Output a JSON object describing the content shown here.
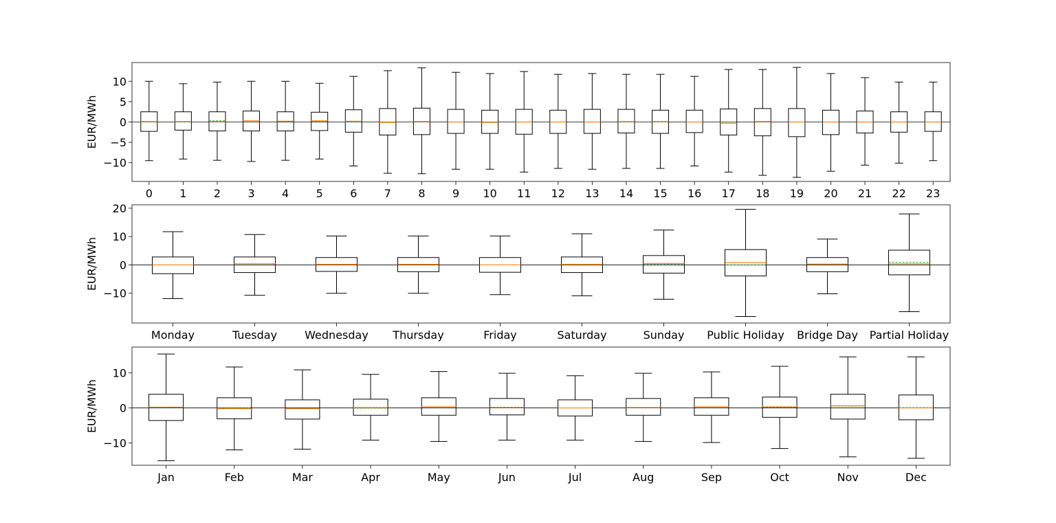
{
  "chart_data": [
    {
      "type": "box",
      "ylabel": "EUR/MWh",
      "yticks": [
        -10,
        -5,
        0,
        5,
        10
      ],
      "ylim": [
        -14.6,
        14.6
      ],
      "zero_line": true,
      "categories": [
        "0",
        "1",
        "2",
        "3",
        "4",
        "5",
        "6",
        "7",
        "8",
        "9",
        "10",
        "11",
        "12",
        "13",
        "14",
        "15",
        "16",
        "17",
        "18",
        "19",
        "20",
        "21",
        "22",
        "23"
      ],
      "boxes": [
        {
          "whislo": -9.5,
          "q1": -2.3,
          "med": 0.1,
          "mean": 0.0,
          "q3": 2.5,
          "whishi": 10.0
        },
        {
          "whislo": -9.1,
          "q1": -2.0,
          "med": 0.1,
          "mean": 0.0,
          "q3": 2.5,
          "whishi": 9.4
        },
        {
          "whislo": -9.4,
          "q1": -2.2,
          "med": 0.1,
          "mean": 0.3,
          "q3": 2.5,
          "whishi": 9.8
        },
        {
          "whislo": -9.7,
          "q1": -2.2,
          "med": 0.3,
          "mean": 0.3,
          "q3": 2.7,
          "whishi": 10.0
        },
        {
          "whislo": -9.4,
          "q1": -2.2,
          "med": 0.2,
          "mean": 0.2,
          "q3": 2.5,
          "whishi": 10.0
        },
        {
          "whislo": -9.1,
          "q1": -2.1,
          "med": 0.3,
          "mean": 0.2,
          "q3": 2.4,
          "whishi": 9.5
        },
        {
          "whislo": -10.8,
          "q1": -2.5,
          "med": 0.2,
          "mean": 0.0,
          "q3": 3.0,
          "whishi": 11.2
        },
        {
          "whislo": -12.6,
          "q1": -3.2,
          "med": -0.1,
          "mean": 0.0,
          "q3": 3.3,
          "whishi": 12.6
        },
        {
          "whislo": -12.7,
          "q1": -3.1,
          "med": 0.1,
          "mean": 0.1,
          "q3": 3.4,
          "whishi": 13.3
        },
        {
          "whislo": -11.6,
          "q1": -2.8,
          "med": 0.0,
          "mean": 0.0,
          "q3": 3.1,
          "whishi": 12.2
        },
        {
          "whislo": -11.6,
          "q1": -2.8,
          "med": -0.1,
          "mean": 0.0,
          "q3": 2.9,
          "whishi": 11.9
        },
        {
          "whislo": -12.3,
          "q1": -3.0,
          "med": 0.0,
          "mean": 0.0,
          "q3": 3.1,
          "whishi": 12.4
        },
        {
          "whislo": -11.4,
          "q1": -2.8,
          "med": 0.0,
          "mean": 0.0,
          "q3": 2.9,
          "whishi": 11.7
        },
        {
          "whislo": -11.6,
          "q1": -2.8,
          "med": 0.0,
          "mean": 0.0,
          "q3": 3.1,
          "whishi": 11.9
        },
        {
          "whislo": -11.4,
          "q1": -2.7,
          "med": 0.1,
          "mean": 0.0,
          "q3": 3.1,
          "whishi": 11.7
        },
        {
          "whislo": -11.4,
          "q1": -2.8,
          "med": 0.1,
          "mean": 0.0,
          "q3": 2.9,
          "whishi": 11.7
        },
        {
          "whislo": -10.8,
          "q1": -2.6,
          "med": 0.0,
          "mean": 0.0,
          "q3": 2.9,
          "whishi": 11.2
        },
        {
          "whislo": -12.3,
          "q1": -3.2,
          "med": -0.3,
          "mean": 0.0,
          "q3": 3.2,
          "whishi": 12.9
        },
        {
          "whislo": -13.1,
          "q1": -3.4,
          "med": 0.1,
          "mean": 0.1,
          "q3": 3.3,
          "whishi": 12.9
        },
        {
          "whislo": -13.6,
          "q1": -3.6,
          "med": 0.0,
          "mean": 0.0,
          "q3": 3.3,
          "whishi": 13.4
        },
        {
          "whislo": -12.1,
          "q1": -3.1,
          "med": 0.0,
          "mean": 0.0,
          "q3": 2.9,
          "whishi": 11.9
        },
        {
          "whislo": -10.6,
          "q1": -2.7,
          "med": 0.0,
          "mean": 0.0,
          "q3": 2.7,
          "whishi": 10.9
        },
        {
          "whislo": -10.1,
          "q1": -2.5,
          "med": 0.0,
          "mean": 0.0,
          "q3": 2.5,
          "whishi": 9.8
        },
        {
          "whislo": -9.5,
          "q1": -2.3,
          "med": 0.0,
          "mean": 0.0,
          "q3": 2.5,
          "whishi": 9.8
        }
      ]
    },
    {
      "type": "box",
      "ylabel": "EUR/MWh",
      "yticks": [
        -10,
        0,
        10,
        20
      ],
      "ylim": [
        -20.5,
        21.2
      ],
      "zero_line": true,
      "categories": [
        "Monday",
        "Tuesday",
        "Wednesday",
        "Thursday",
        "Friday",
        "Saturday",
        "Sunday",
        "Public Holiday",
        "Bridge Day",
        "Partial Holiday"
      ],
      "boxes": [
        {
          "whislo": -11.9,
          "q1": -3.1,
          "med": 0.0,
          "mean": 0.0,
          "q3": 2.8,
          "whishi": 11.7
        },
        {
          "whislo": -10.7,
          "q1": -2.7,
          "med": 0.4,
          "mean": 0.4,
          "q3": 2.8,
          "whishi": 10.7
        },
        {
          "whislo": -10.0,
          "q1": -2.3,
          "med": 0.2,
          "mean": 0.2,
          "q3": 2.6,
          "whishi": 10.2
        },
        {
          "whislo": -10.0,
          "q1": -2.4,
          "med": 0.2,
          "mean": 0.2,
          "q3": 2.6,
          "whishi": 10.2
        },
        {
          "whislo": -10.5,
          "q1": -2.6,
          "med": 0.0,
          "mean": 0.0,
          "q3": 2.6,
          "whishi": 10.2
        },
        {
          "whislo": -10.9,
          "q1": -2.7,
          "med": 0.2,
          "mean": -0.1,
          "q3": 2.8,
          "whishi": 11.0
        },
        {
          "whislo": -12.1,
          "q1": -2.9,
          "med": 0.5,
          "mean": 0.3,
          "q3": 3.3,
          "whishi": 12.3
        },
        {
          "whislo": -18.2,
          "q1": -3.9,
          "med": 0.8,
          "mean": 0.0,
          "q3": 5.4,
          "whishi": 19.6
        },
        {
          "whislo": -10.2,
          "q1": -2.4,
          "med": 0.3,
          "mean": 0.2,
          "q3": 2.6,
          "whishi": 9.1
        },
        {
          "whislo": -16.5,
          "q1": -3.5,
          "med": 0.4,
          "mean": 0.9,
          "q3": 5.2,
          "whishi": 18.0
        }
      ]
    },
    {
      "type": "box",
      "ylabel": "EUR/MWh",
      "yticks": [
        -10,
        0,
        10
      ],
      "ylim": [
        -16.4,
        17.4
      ],
      "zero_line": true,
      "categories": [
        "Jan",
        "Feb",
        "Mar",
        "Apr",
        "May",
        "Jun",
        "Jul",
        "Aug",
        "Sep",
        "Oct",
        "Nov",
        "Dec"
      ],
      "boxes": [
        {
          "whislo": -15.1,
          "q1": -3.6,
          "med": 0.2,
          "mean": 0.1,
          "q3": 3.9,
          "whishi": 15.4
        },
        {
          "whislo": -12.0,
          "q1": -3.1,
          "med": -0.2,
          "mean": -0.1,
          "q3": 2.9,
          "whishi": 11.7
        },
        {
          "whislo": -11.8,
          "q1": -3.2,
          "med": -0.2,
          "mean": -0.2,
          "q3": 2.3,
          "whishi": 10.9
        },
        {
          "whislo": -9.2,
          "q1": -2.1,
          "med": 0.1,
          "mean": -0.1,
          "q3": 2.5,
          "whishi": 9.6
        },
        {
          "whislo": -9.6,
          "q1": -2.1,
          "med": 0.3,
          "mean": 0.3,
          "q3": 2.9,
          "whishi": 10.4
        },
        {
          "whislo": -9.2,
          "q1": -2.0,
          "med": 0.1,
          "mean": 0.2,
          "q3": 2.7,
          "whishi": 9.9
        },
        {
          "whislo": -9.2,
          "q1": -2.3,
          "med": 0.0,
          "mean": 0.0,
          "q3": 2.3,
          "whishi": 9.2
        },
        {
          "whislo": -9.6,
          "q1": -2.1,
          "med": 0.1,
          "mean": 0.1,
          "q3": 2.7,
          "whishi": 9.9
        },
        {
          "whislo": -9.9,
          "q1": -2.1,
          "med": 0.3,
          "mean": 0.3,
          "q3": 2.9,
          "whishi": 10.3
        },
        {
          "whislo": -11.6,
          "q1": -2.7,
          "med": 0.3,
          "mean": 0.2,
          "q3": 3.1,
          "whishi": 11.9
        },
        {
          "whislo": -14.0,
          "q1": -3.2,
          "med": 0.6,
          "mean": 0.5,
          "q3": 3.9,
          "whishi": 14.6
        },
        {
          "whislo": -14.4,
          "q1": -3.4,
          "med": 0.0,
          "mean": 0.1,
          "q3": 3.7,
          "whishi": 14.6
        }
      ]
    }
  ],
  "colors": {
    "box": "#000000",
    "median": "#ff7f0e",
    "mean": "#2ca02c",
    "zero_line": "#000000"
  }
}
